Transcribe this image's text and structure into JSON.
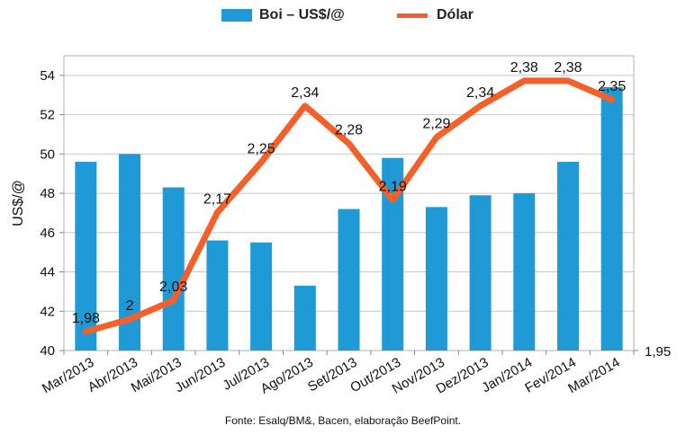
{
  "chart_data": {
    "type": "bar+line",
    "categories": [
      "Mar/2013",
      "Abr/2013",
      "Mai/2013",
      "Jun/2013",
      "Jul/2013",
      "Ago/2013",
      "Set/2013",
      "Out/2013",
      "Nov/2013",
      "Dez/2013",
      "Jan/2014",
      "Fev/2014",
      "Mar/2014"
    ],
    "series": [
      {
        "name": "Boi – US$/@",
        "type": "bar",
        "axis": "left",
        "color": "#1f9ad6",
        "values": [
          49.6,
          50.0,
          48.3,
          45.6,
          45.5,
          43.3,
          47.2,
          49.8,
          47.3,
          47.9,
          48.0,
          49.6,
          53.4
        ]
      },
      {
        "name": "Dólar",
        "type": "line",
        "axis": "right",
        "color": "#f4602a",
        "values": [
          1.98,
          2.0,
          2.03,
          2.17,
          2.25,
          2.34,
          2.28,
          2.19,
          2.29,
          2.34,
          2.38,
          2.38,
          2.35
        ],
        "labels": [
          "1,98",
          "2",
          "2,03",
          "2,17",
          "2,25",
          "2,34",
          "2,28",
          "2,19",
          "2,29",
          "2,34",
          "2,38",
          "2,38",
          "2,35"
        ]
      }
    ],
    "y_left": {
      "label": "US$/@",
      "range": [
        40,
        55
      ],
      "ticks": [
        40,
        42,
        44,
        46,
        48,
        50,
        52,
        54
      ],
      "tick_labels": [
        "40",
        "42",
        "44",
        "46",
        "48",
        "50",
        "52",
        "54"
      ]
    },
    "y_right": {
      "range": [
        1.95,
        2.42
      ],
      "ticks": [
        1.95
      ],
      "tick_labels": [
        "1,95"
      ]
    },
    "grid": "horizontal",
    "legend_position": "top-center"
  },
  "legend": {
    "bar_label": "Boi – US$/@",
    "line_label": "Dólar"
  },
  "source": "Fonte:  Esalq/BM&,  Bacen,  elaboração  BeefPoint."
}
